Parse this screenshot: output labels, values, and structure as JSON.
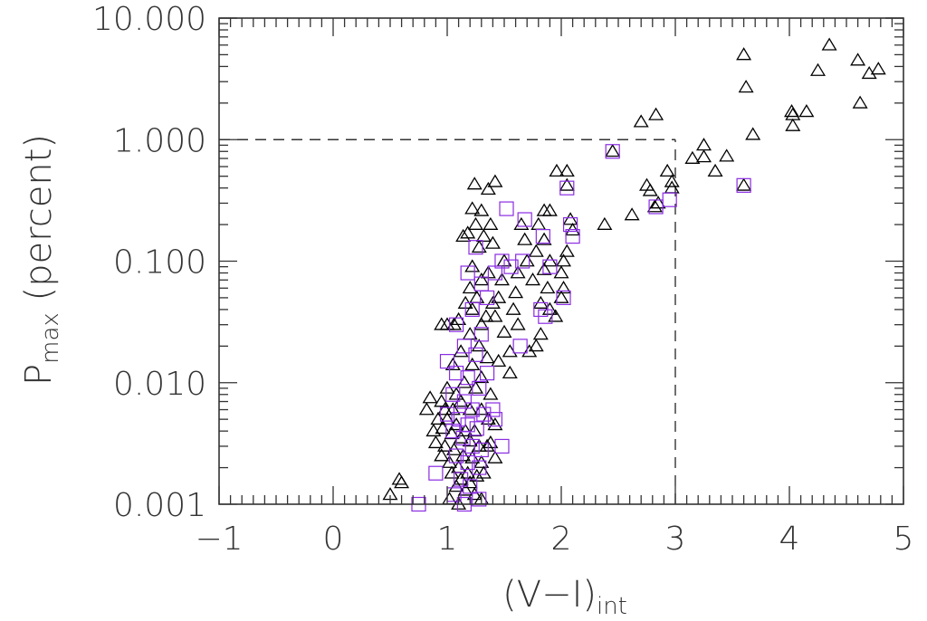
{
  "chart_data": {
    "type": "scatter",
    "title": "",
    "xlabel": "(V−I)",
    "xlabel_sub": "int",
    "ylabel": "P",
    "ylabel_sub": "max",
    "ylabel_suffix": " (percent)",
    "xlim": [
      -1,
      5
    ],
    "ylim": [
      0.001,
      10
    ],
    "yscale": "log",
    "grid": false,
    "x_ticks": [
      -1,
      0,
      1,
      2,
      3,
      4,
      5
    ],
    "x_tick_labels": [
      "−1",
      "0",
      "1",
      "2",
      "3",
      "4",
      "5"
    ],
    "y_ticks": [
      0.001,
      0.01,
      0.1,
      1,
      10
    ],
    "y_tick_labels": [
      "0.001",
      "0.010",
      "0.100",
      "1.000",
      "10.000"
    ],
    "reference_lines": [
      {
        "orientation": "horizontal",
        "y": 1.0,
        "x_from": -1,
        "x_to": 3,
        "style": "dashed"
      },
      {
        "orientation": "vertical",
        "x": 3.0,
        "y_from": 0.001,
        "y_to": 1.0,
        "style": "dashed"
      }
    ],
    "colors": {
      "triangles": "#000000",
      "squares": "#8a2be2",
      "reference_lines": "#333333"
    },
    "series": [
      {
        "marker": "triangle",
        "color": "#000000",
        "points": [
          [
            4.35,
            6.0
          ],
          [
            4.6,
            4.5
          ],
          [
            4.78,
            3.8
          ],
          [
            4.7,
            3.5
          ],
          [
            4.25,
            3.7
          ],
          [
            4.62,
            2.0
          ],
          [
            3.6,
            5.0
          ],
          [
            3.62,
            2.7
          ],
          [
            4.15,
            1.7
          ],
          [
            4.02,
            1.7
          ],
          [
            4.03,
            1.6
          ],
          [
            4.03,
            1.3
          ],
          [
            3.68,
            1.1
          ],
          [
            3.25,
            0.9
          ],
          [
            3.15,
            0.7
          ],
          [
            3.25,
            0.72
          ],
          [
            3.45,
            0.73
          ],
          [
            3.35,
            0.55
          ],
          [
            3.6,
            0.42
          ],
          [
            2.83,
            1.6
          ],
          [
            2.7,
            1.4
          ],
          [
            2.93,
            0.55
          ],
          [
            2.97,
            0.45
          ],
          [
            2.97,
            0.4
          ],
          [
            2.45,
            0.8
          ],
          [
            2.75,
            0.42
          ],
          [
            2.78,
            0.38
          ],
          [
            2.85,
            0.3
          ],
          [
            2.82,
            0.28
          ],
          [
            2.62,
            0.24
          ],
          [
            2.38,
            0.2
          ],
          [
            1.96,
            0.55
          ],
          [
            2.05,
            0.55
          ],
          [
            2.05,
            0.42
          ],
          [
            2.08,
            0.22
          ],
          [
            2.1,
            0.18
          ],
          [
            2.05,
            0.12
          ],
          [
            2.02,
            0.1
          ],
          [
            2.0,
            0.08
          ],
          [
            2.02,
            0.06
          ],
          [
            2.0,
            0.05
          ],
          [
            1.95,
            0.035
          ],
          [
            1.85,
            0.26
          ],
          [
            1.8,
            0.2
          ],
          [
            1.9,
            0.26
          ],
          [
            1.85,
            0.15
          ],
          [
            1.78,
            0.12
          ],
          [
            1.9,
            0.1
          ],
          [
            1.85,
            0.085
          ],
          [
            1.75,
            0.07
          ],
          [
            1.82,
            0.045
          ],
          [
            1.88,
            0.06
          ],
          [
            1.9,
            0.04
          ],
          [
            1.82,
            0.025
          ],
          [
            1.78,
            0.02
          ],
          [
            1.72,
            0.018
          ],
          [
            1.65,
            0.2
          ],
          [
            1.68,
            0.15
          ],
          [
            1.7,
            0.1
          ],
          [
            1.62,
            0.08
          ],
          [
            1.6,
            0.055
          ],
          [
            1.58,
            0.04
          ],
          [
            1.62,
            0.03
          ],
          [
            1.55,
            0.018
          ],
          [
            1.55,
            0.012
          ],
          [
            1.5,
            0.1
          ],
          [
            1.48,
            0.07
          ],
          [
            1.45,
            0.05
          ],
          [
            1.42,
            0.035
          ],
          [
            1.5,
            0.026
          ],
          [
            1.45,
            0.015
          ],
          [
            1.42,
            0.45
          ],
          [
            1.36,
            0.39
          ],
          [
            1.24,
            0.43
          ],
          [
            1.3,
            0.26
          ],
          [
            1.22,
            0.27
          ],
          [
            1.38,
            0.2
          ],
          [
            1.18,
            0.17
          ],
          [
            1.25,
            0.2
          ],
          [
            1.32,
            0.16
          ],
          [
            1.14,
            0.16
          ],
          [
            1.4,
            0.14
          ],
          [
            1.28,
            0.13
          ],
          [
            1.22,
            0.09
          ],
          [
            1.36,
            0.08
          ],
          [
            1.3,
            0.07
          ],
          [
            1.2,
            0.06
          ],
          [
            1.26,
            0.05
          ],
          [
            1.4,
            0.045
          ],
          [
            1.34,
            0.035
          ],
          [
            1.16,
            0.045
          ],
          [
            1.22,
            0.04
          ],
          [
            1.3,
            0.03
          ],
          [
            1.1,
            0.033
          ],
          [
            1.0,
            0.03
          ],
          [
            0.95,
            0.03
          ],
          [
            1.06,
            0.03
          ],
          [
            1.2,
            0.025
          ],
          [
            1.28,
            0.02
          ],
          [
            1.35,
            0.016
          ],
          [
            1.12,
            0.018
          ],
          [
            1.22,
            0.014
          ],
          [
            1.3,
            0.011
          ],
          [
            1.05,
            0.014
          ],
          [
            1.15,
            0.01
          ],
          [
            1.25,
            0.009
          ],
          [
            1.38,
            0.008
          ],
          [
            1.0,
            0.009
          ],
          [
            1.08,
            0.008
          ],
          [
            0.95,
            0.007
          ],
          [
            0.98,
            0.006
          ],
          [
            1.05,
            0.006
          ],
          [
            1.12,
            0.007
          ],
          [
            1.2,
            0.006
          ],
          [
            1.3,
            0.006
          ],
          [
            1.36,
            0.005
          ],
          [
            1.42,
            0.0045
          ],
          [
            0.92,
            0.005
          ],
          [
            1.0,
            0.005
          ],
          [
            1.08,
            0.0045
          ],
          [
            1.16,
            0.004
          ],
          [
            1.24,
            0.004
          ],
          [
            0.88,
            0.004
          ],
          [
            0.96,
            0.0042
          ],
          [
            1.04,
            0.0038
          ],
          [
            1.12,
            0.0035
          ],
          [
            1.2,
            0.0033
          ],
          [
            1.28,
            0.003
          ],
          [
            1.35,
            0.003
          ],
          [
            0.9,
            0.0032
          ],
          [
            0.98,
            0.003
          ],
          [
            1.06,
            0.0028
          ],
          [
            1.14,
            0.0025
          ],
          [
            1.22,
            0.0024
          ],
          [
            1.3,
            0.0022
          ],
          [
            0.95,
            0.0025
          ],
          [
            1.02,
            0.0022
          ],
          [
            1.1,
            0.002
          ],
          [
            1.18,
            0.0018
          ],
          [
            1.26,
            0.0017
          ],
          [
            1.04,
            0.0018
          ],
          [
            1.12,
            0.0016
          ],
          [
            1.2,
            0.0015
          ],
          [
            1.08,
            0.0014
          ],
          [
            1.16,
            0.0013
          ],
          [
            1.24,
            0.0012
          ],
          [
            1.02,
            0.0011
          ],
          [
            1.1,
            0.001
          ],
          [
            1.3,
            0.0011
          ],
          [
            0.85,
            0.0075
          ],
          [
            0.82,
            0.006
          ],
          [
            0.58,
            0.0016
          ],
          [
            0.6,
            0.0015
          ],
          [
            0.5,
            0.0012
          ],
          [
            1.38,
            0.0032
          ],
          [
            1.42,
            0.0024
          ],
          [
            1.32,
            0.0018
          ]
        ]
      },
      {
        "marker": "square",
        "color": "#8a2be2",
        "points": [
          [
            3.6,
            0.42
          ],
          [
            2.45,
            0.8
          ],
          [
            2.95,
            0.32
          ],
          [
            2.83,
            0.28
          ],
          [
            2.05,
            0.4
          ],
          [
            2.08,
            0.2
          ],
          [
            2.1,
            0.16
          ],
          [
            2.02,
            0.05
          ],
          [
            1.84,
            0.16
          ],
          [
            1.9,
            0.09
          ],
          [
            1.82,
            0.04
          ],
          [
            1.86,
            0.035
          ],
          [
            1.68,
            0.22
          ],
          [
            1.66,
            0.1
          ],
          [
            1.56,
            0.09
          ],
          [
            1.64,
            0.02
          ],
          [
            1.52,
            0.27
          ],
          [
            1.48,
            0.1
          ],
          [
            1.42,
            0.08
          ],
          [
            1.25,
            0.13
          ],
          [
            1.3,
            0.065
          ],
          [
            1.35,
            0.05
          ],
          [
            1.18,
            0.08
          ],
          [
            1.22,
            0.04
          ],
          [
            1.3,
            0.025
          ],
          [
            1.08,
            0.03
          ],
          [
            1.15,
            0.02
          ],
          [
            1.25,
            0.017
          ],
          [
            1.35,
            0.012
          ],
          [
            1.0,
            0.015
          ],
          [
            1.08,
            0.012
          ],
          [
            1.18,
            0.011
          ],
          [
            1.28,
            0.009
          ],
          [
            1.05,
            0.008
          ],
          [
            1.15,
            0.007
          ],
          [
            1.22,
            0.006
          ],
          [
            1.32,
            0.0055
          ],
          [
            1.42,
            0.005
          ],
          [
            1.0,
            0.0055
          ],
          [
            1.1,
            0.005
          ],
          [
            1.18,
            0.0045
          ],
          [
            1.26,
            0.0042
          ],
          [
            1.05,
            0.004
          ],
          [
            1.14,
            0.0035
          ],
          [
            1.22,
            0.003
          ],
          [
            1.3,
            0.0028
          ],
          [
            1.48,
            0.003
          ],
          [
            1.08,
            0.0025
          ],
          [
            1.18,
            0.0022
          ],
          [
            1.28,
            0.002
          ],
          [
            1.12,
            0.0016
          ],
          [
            1.2,
            0.0014
          ],
          [
            1.06,
            0.0012
          ],
          [
            1.28,
            0.0011
          ],
          [
            0.9,
            0.0018
          ],
          [
            0.75,
            0.001
          ],
          [
            1.15,
            0.001
          ],
          [
            1.4,
            0.006
          ]
        ]
      }
    ]
  }
}
